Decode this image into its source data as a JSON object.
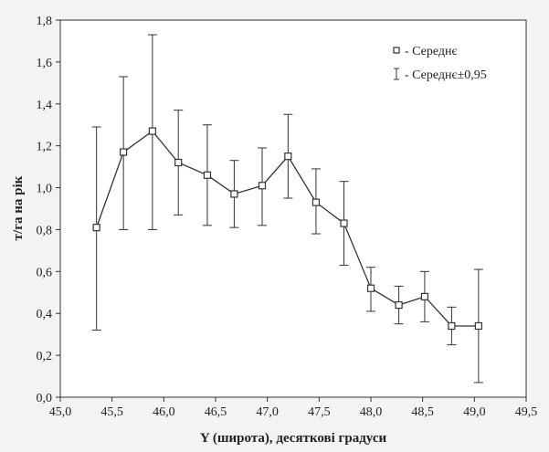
{
  "chart_data": {
    "type": "line",
    "title": "",
    "xlabel": "Y (широта), десяткові градуси",
    "ylabel": "т/га на рік",
    "xlim": [
      45.0,
      49.5
    ],
    "ylim": [
      0.0,
      1.8
    ],
    "x_ticks": [
      "45,0",
      "45,5",
      "46,0",
      "46,5",
      "47,0",
      "47,5",
      "48,0",
      "48,5",
      "49,0",
      "49,5"
    ],
    "y_ticks": [
      "0,0",
      "0,2",
      "0,4",
      "0,6",
      "0,8",
      "1,0",
      "1,2",
      "1,4",
      "1,6",
      "1,8"
    ],
    "grid": false,
    "legend_placement": "top-right",
    "legend": [
      {
        "marker": "square",
        "label": "- Середнє"
      },
      {
        "marker": "errorbar",
        "label": "- Середнє±0,95"
      }
    ],
    "series": [
      {
        "x": [
          45.35,
          45.61,
          45.89,
          46.14,
          46.42,
          46.68,
          46.95,
          47.2,
          47.47,
          47.74,
          48.0,
          48.27,
          48.52,
          48.78,
          49.04
        ],
        "mean": [
          0.81,
          1.17,
          1.27,
          1.12,
          1.06,
          0.97,
          1.01,
          1.15,
          0.93,
          0.83,
          0.52,
          0.44,
          0.48,
          0.34,
          0.34
        ],
        "lower": [
          0.32,
          0.8,
          0.8,
          0.87,
          0.82,
          0.81,
          0.82,
          0.95,
          0.78,
          0.63,
          0.41,
          0.35,
          0.36,
          0.25,
          0.07
        ],
        "upper": [
          1.29,
          1.53,
          1.73,
          1.37,
          1.3,
          1.13,
          1.19,
          1.35,
          1.09,
          1.03,
          0.62,
          0.53,
          0.6,
          0.43,
          0.61
        ]
      }
    ]
  }
}
